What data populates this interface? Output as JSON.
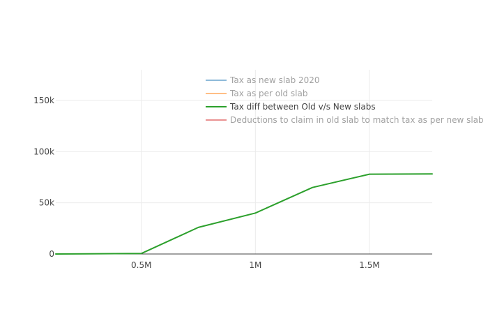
{
  "chart_data": {
    "type": "line",
    "title": "",
    "xlabel": "",
    "ylabel": "",
    "xlim": [
      125000,
      1775000
    ],
    "ylim": [
      0,
      180000
    ],
    "grid": true,
    "legend_position": "top-right",
    "x_ticks": [
      {
        "value": 500000,
        "label": "0.5M"
      },
      {
        "value": 1000000,
        "label": "1M"
      },
      {
        "value": 1500000,
        "label": "1.5M"
      }
    ],
    "y_ticks": [
      {
        "value": 0,
        "label": "0"
      },
      {
        "value": 50000,
        "label": "50k"
      },
      {
        "value": 100000,
        "label": "100k"
      },
      {
        "value": 150000,
        "label": "150k"
      }
    ],
    "series": [
      {
        "name": "Tax as new slab 2020",
        "color": "#1f77b4",
        "visible": false,
        "x": [],
        "y": []
      },
      {
        "name": "Tax as per old slab",
        "color": "#ff7f0e",
        "visible": false,
        "x": [],
        "y": []
      },
      {
        "name": "Tax diff between Old v/s New slabs",
        "color": "#2ca02c",
        "visible": true,
        "x": [
          125000,
          500000,
          750000,
          1000000,
          1250000,
          1500000,
          1775000
        ],
        "y": [
          0,
          500,
          26000,
          40000,
          65000,
          78000,
          78200
        ]
      },
      {
        "name": "Deductions to claim in old slab to match tax as per new slab",
        "color": "#d62728",
        "visible": false,
        "x": [],
        "y": []
      }
    ]
  }
}
